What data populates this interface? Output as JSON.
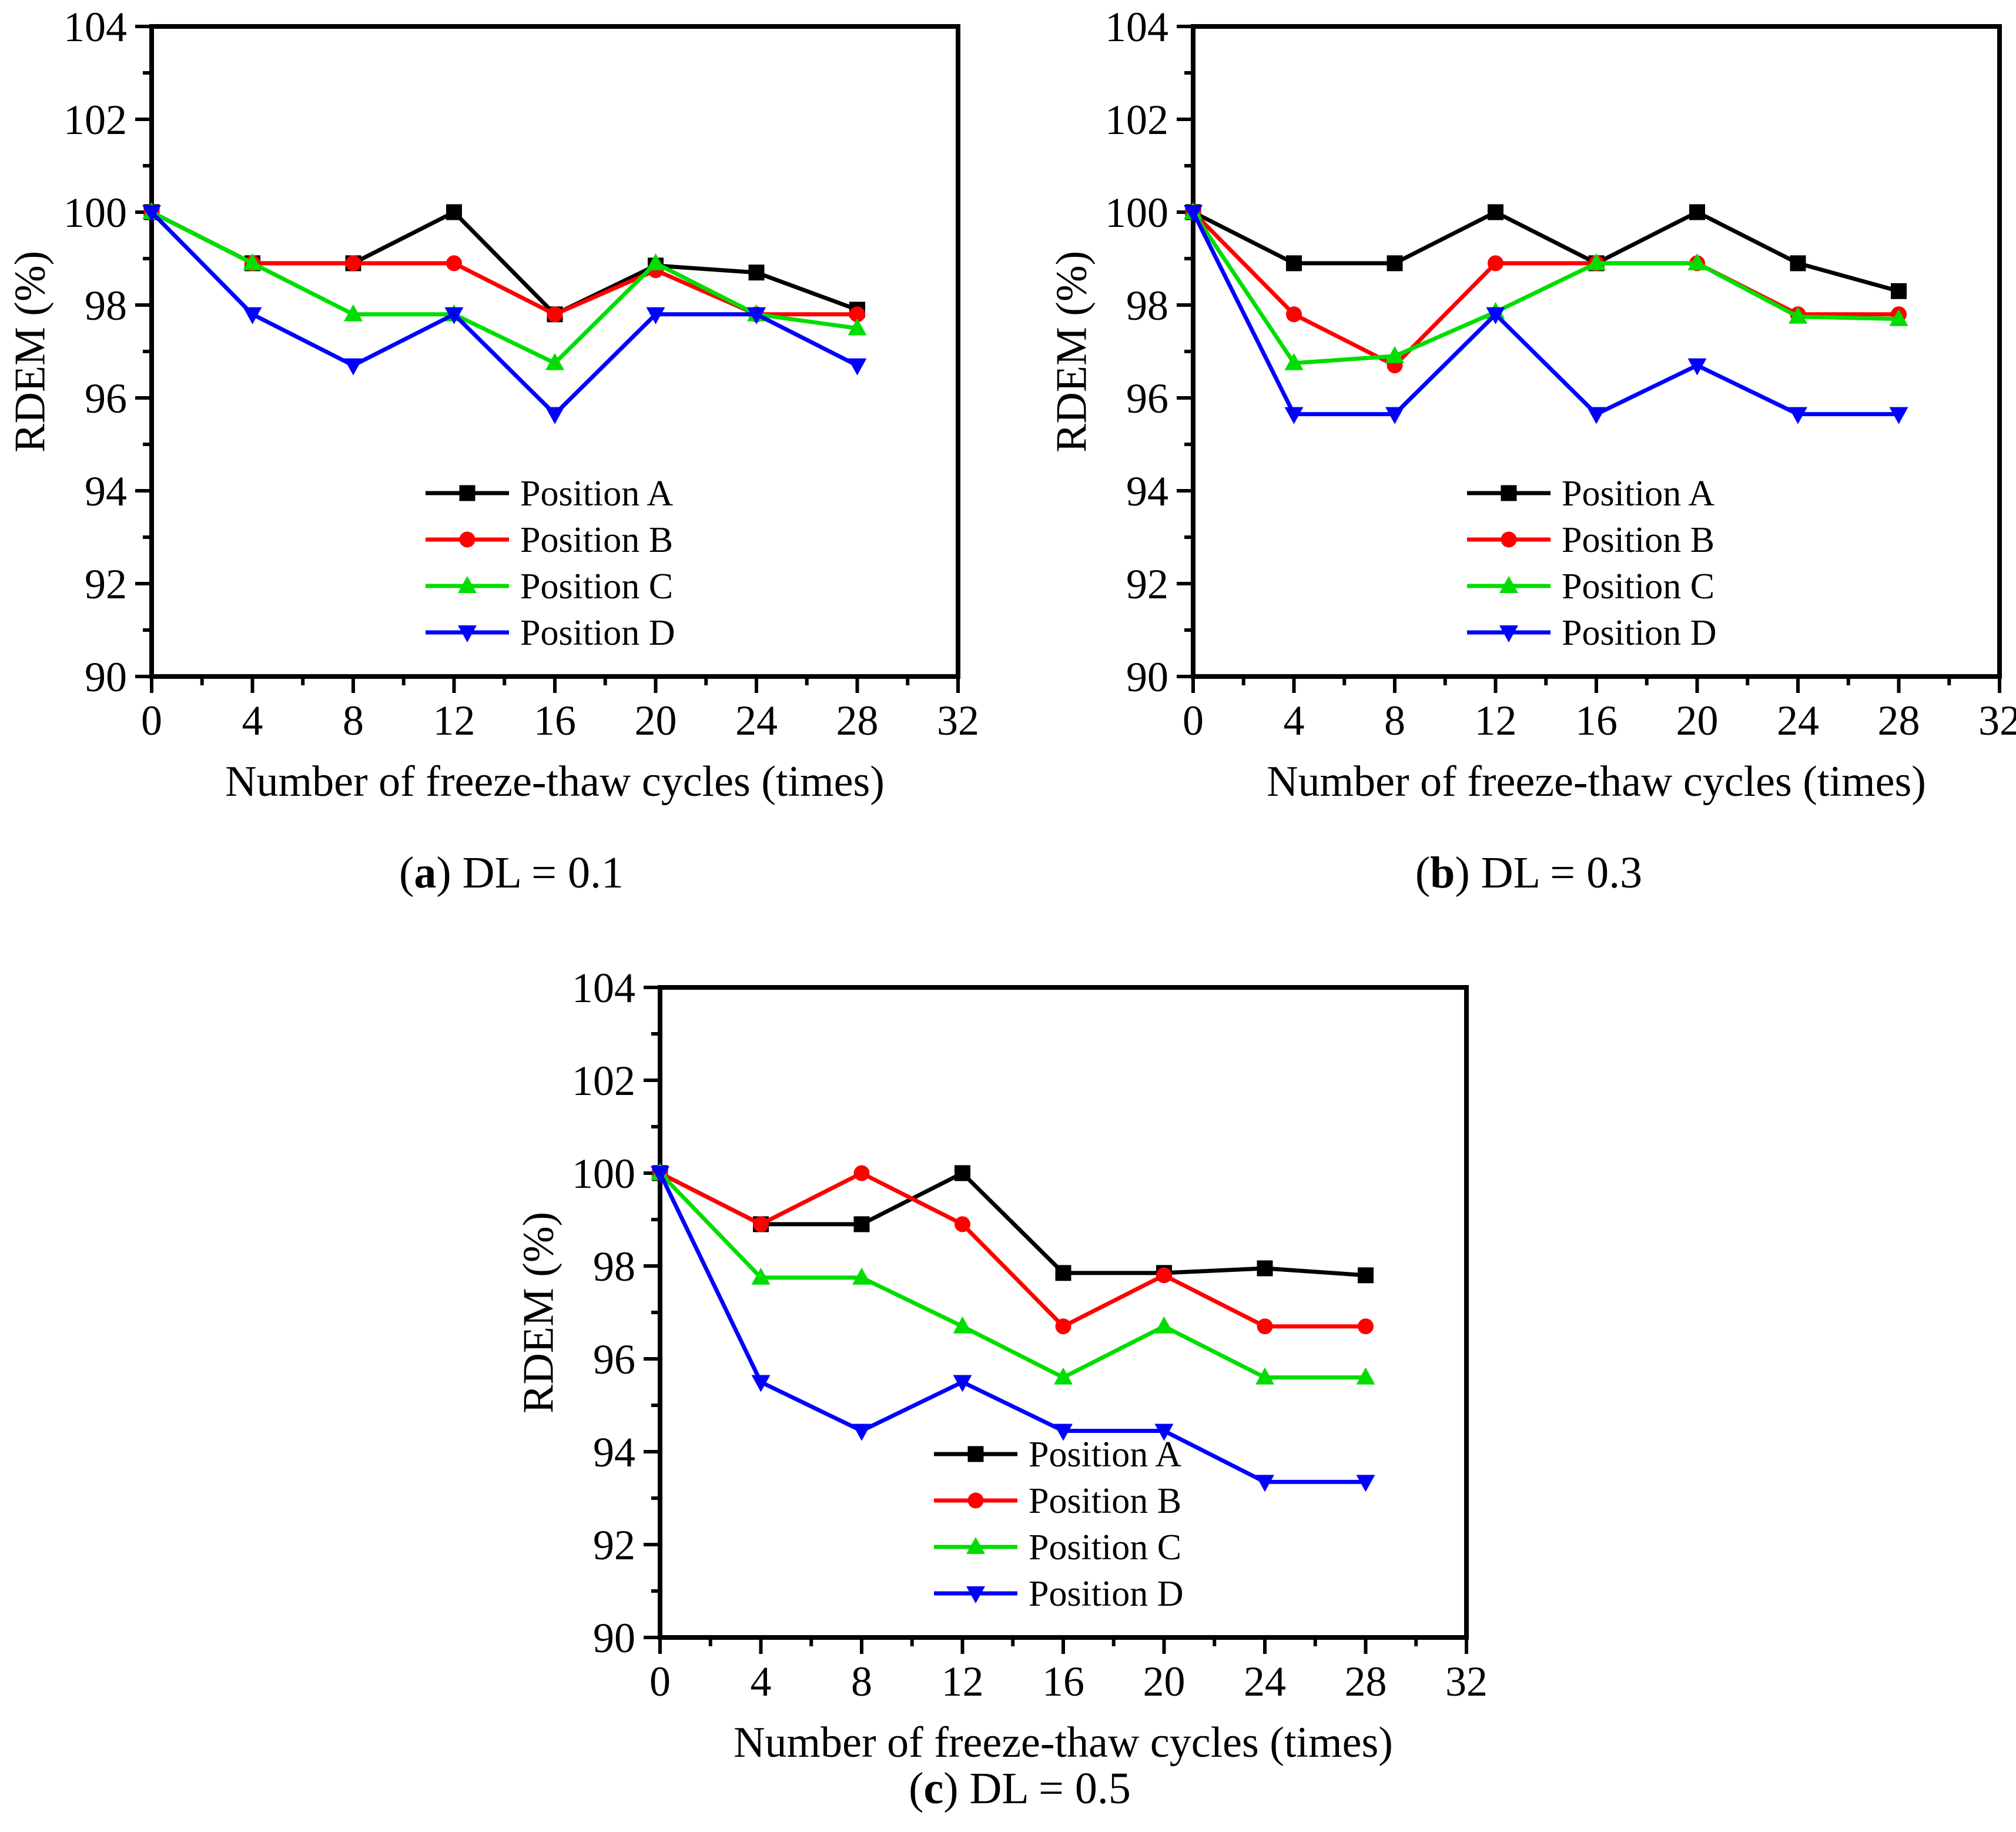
{
  "page": {
    "background": "#ffffff"
  },
  "chart_data": [
    {
      "type": "line",
      "id": "a",
      "caption": {
        "open": "(",
        "letter": "a",
        "close": ") ",
        "text": "DL = 0.1"
      },
      "xlabel": "Number of freeze-thaw cycles (times)",
      "ylabel": "RDEM (%)",
      "xlim": [
        0,
        32
      ],
      "ylim": [
        90,
        104
      ],
      "xtick_major": 4,
      "xtick_minor": 2,
      "ytick_major": 2,
      "ytick_minor": 1,
      "grid": false,
      "legend_position": "inside-lower-center",
      "x": [
        0,
        4,
        8,
        12,
        16,
        20,
        24,
        28
      ],
      "series": [
        {
          "name": "Position A",
          "marker": "square",
          "color": "#000000",
          "values": [
            100,
            98.9,
            98.9,
            100,
            97.8,
            98.85,
            98.7,
            97.9
          ]
        },
        {
          "name": "Position B",
          "marker": "circle",
          "color": "#ff0000",
          "values": [
            100,
            98.9,
            98.9,
            98.9,
            97.8,
            98.75,
            97.8,
            97.8
          ]
        },
        {
          "name": "Position C",
          "marker": "triangle-up",
          "color": "#00dd00",
          "values": [
            100,
            98.9,
            97.8,
            97.8,
            96.75,
            98.9,
            97.8,
            97.5
          ]
        },
        {
          "name": "Position D",
          "marker": "triangle-down",
          "color": "#0000ff",
          "values": [
            100,
            97.8,
            96.7,
            97.8,
            95.65,
            97.8,
            97.8,
            96.7
          ]
        }
      ]
    },
    {
      "type": "line",
      "id": "b",
      "caption": {
        "open": "(",
        "letter": "b",
        "close": ") ",
        "text": "DL = 0.3"
      },
      "xlabel": "Number of freeze-thaw cycles (times)",
      "ylabel": "RDEM (%)",
      "xlim": [
        0,
        32
      ],
      "ylim": [
        90,
        104
      ],
      "xtick_major": 4,
      "xtick_minor": 2,
      "ytick_major": 2,
      "ytick_minor": 1,
      "grid": false,
      "legend_position": "inside-lower-center",
      "x": [
        0,
        4,
        8,
        12,
        16,
        20,
        24,
        28
      ],
      "series": [
        {
          "name": "Position A",
          "marker": "square",
          "color": "#000000",
          "values": [
            100,
            98.9,
            98.9,
            100,
            98.9,
            100,
            98.9,
            98.3
          ]
        },
        {
          "name": "Position B",
          "marker": "circle",
          "color": "#ff0000",
          "values": [
            100,
            97.8,
            96.7,
            98.9,
            98.9,
            98.9,
            97.8,
            97.8
          ]
        },
        {
          "name": "Position C",
          "marker": "triangle-up",
          "color": "#00dd00",
          "values": [
            100,
            96.75,
            96.9,
            97.85,
            98.9,
            98.9,
            97.75,
            97.7
          ]
        },
        {
          "name": "Position D",
          "marker": "triangle-down",
          "color": "#0000ff",
          "values": [
            100,
            95.65,
            95.65,
            97.8,
            95.65,
            96.7,
            95.65,
            95.65
          ]
        }
      ]
    },
    {
      "type": "line",
      "id": "c",
      "caption": {
        "open": "(",
        "letter": "c",
        "close": ") ",
        "text": "DL = 0.5"
      },
      "xlabel": "Number of freeze-thaw cycles (times)",
      "ylabel": "RDEM (%)",
      "xlim": [
        0,
        32
      ],
      "ylim": [
        90,
        104
      ],
      "xtick_major": 4,
      "xtick_minor": 2,
      "ytick_major": 2,
      "ytick_minor": 1,
      "grid": false,
      "legend_position": "inside-lower-center",
      "x": [
        0,
        4,
        8,
        12,
        16,
        20,
        24,
        28
      ],
      "series": [
        {
          "name": "Position A",
          "marker": "square",
          "color": "#000000",
          "values": [
            100,
            98.9,
            98.9,
            100,
            97.85,
            97.85,
            97.95,
            97.8
          ]
        },
        {
          "name": "Position B",
          "marker": "circle",
          "color": "#ff0000",
          "values": [
            100,
            98.9,
            100,
            98.9,
            96.7,
            97.8,
            96.7,
            96.7
          ]
        },
        {
          "name": "Position C",
          "marker": "triangle-up",
          "color": "#00dd00",
          "values": [
            100,
            97.75,
            97.75,
            96.7,
            95.6,
            96.7,
            95.6,
            95.6
          ]
        },
        {
          "name": "Position D",
          "marker": "triangle-down",
          "color": "#0000ff",
          "values": [
            100,
            95.5,
            94.45,
            95.5,
            94.45,
            94.45,
            93.35,
            93.35
          ]
        }
      ]
    }
  ]
}
